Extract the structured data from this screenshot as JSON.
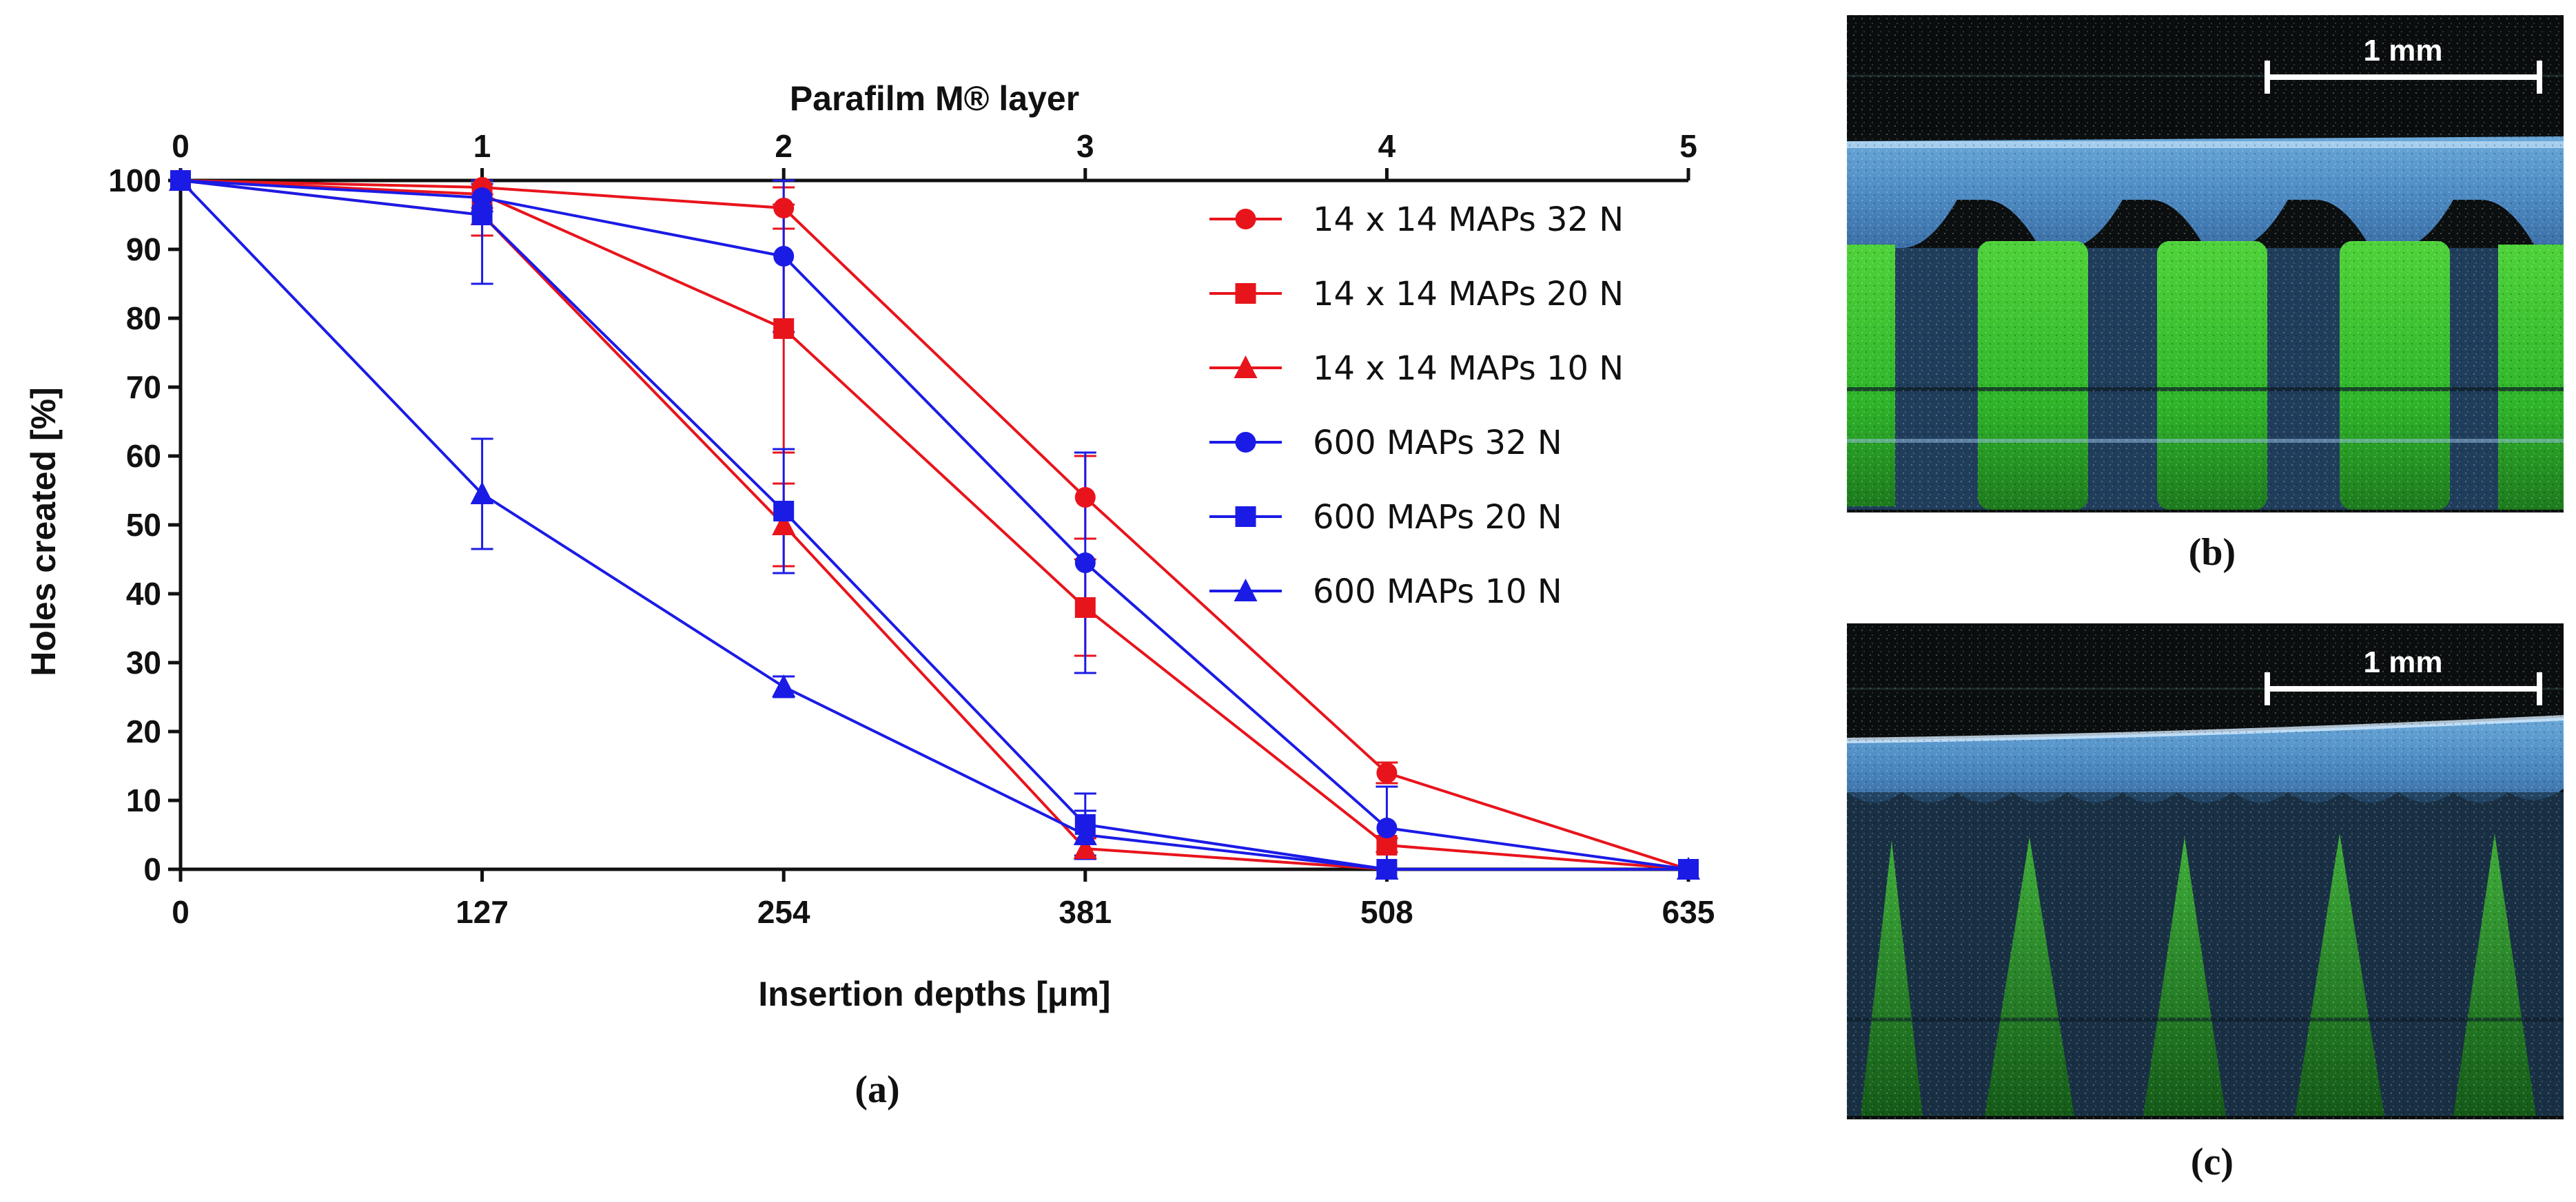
{
  "chart_data": {
    "type": "line",
    "panel_label": "(a)",
    "xlabel": "Insertion depths [μm]",
    "x2label": "Parafilm M® layer",
    "ylabel": "Holes created [%]",
    "x": [
      0,
      127,
      254,
      381,
      508,
      635
    ],
    "xticks": [
      "0",
      "127",
      "254",
      "381",
      "508",
      "635"
    ],
    "x2ticks": [
      "0",
      "1",
      "2",
      "3",
      "4",
      "5"
    ],
    "xlim": [
      0,
      635
    ],
    "ylim": [
      0,
      100
    ],
    "yticks": [
      "0",
      "10",
      "20",
      "30",
      "40",
      "50",
      "60",
      "70",
      "80",
      "90",
      "100"
    ],
    "legend_position": "upper-right",
    "series": [
      {
        "name": "14 x 14 MAPs 32 N",
        "color": "#e8141c",
        "marker": "circle",
        "values": [
          100,
          99,
          96,
          54,
          14,
          0
        ],
        "errors": [
          0,
          1,
          3,
          6,
          1.5,
          0
        ]
      },
      {
        "name": "14 x 14 MAPs 20 N",
        "color": "#e8141c",
        "marker": "square",
        "values": [
          100,
          98,
          78.5,
          38,
          3.5,
          0
        ],
        "errors": [
          0,
          2,
          18,
          7,
          1,
          0
        ]
      },
      {
        "name": "14 x 14 MAPs 10 N",
        "color": "#e8141c",
        "marker": "triangle",
        "values": [
          100,
          95,
          50,
          3,
          0,
          0
        ],
        "errors": [
          0,
          3,
          6,
          1.5,
          0,
          0
        ]
      },
      {
        "name": "600 MAPs 32 N",
        "color": "#1b1be6",
        "marker": "circle",
        "values": [
          100,
          97.5,
          89,
          44.5,
          6,
          0
        ],
        "errors": [
          0,
          2,
          11,
          16,
          6,
          0
        ]
      },
      {
        "name": "600 MAPs 20 N",
        "color": "#1b1be6",
        "marker": "square",
        "values": [
          100,
          95,
          52,
          6.5,
          0,
          0
        ],
        "errors": [
          0,
          10,
          9,
          4.5,
          0,
          0
        ]
      },
      {
        "name": "600 MAPs 10 N",
        "color": "#1b1be6",
        "marker": "triangle",
        "values": [
          100,
          54.5,
          26.5,
          5,
          0,
          0
        ],
        "errors": [
          0,
          8,
          1.5,
          3.5,
          0,
          0
        ]
      }
    ]
  },
  "images": [
    {
      "panel_label": "(b)",
      "scale_bar_label": "1 mm"
    },
    {
      "panel_label": "(c)",
      "scale_bar_label": "1 mm"
    }
  ]
}
